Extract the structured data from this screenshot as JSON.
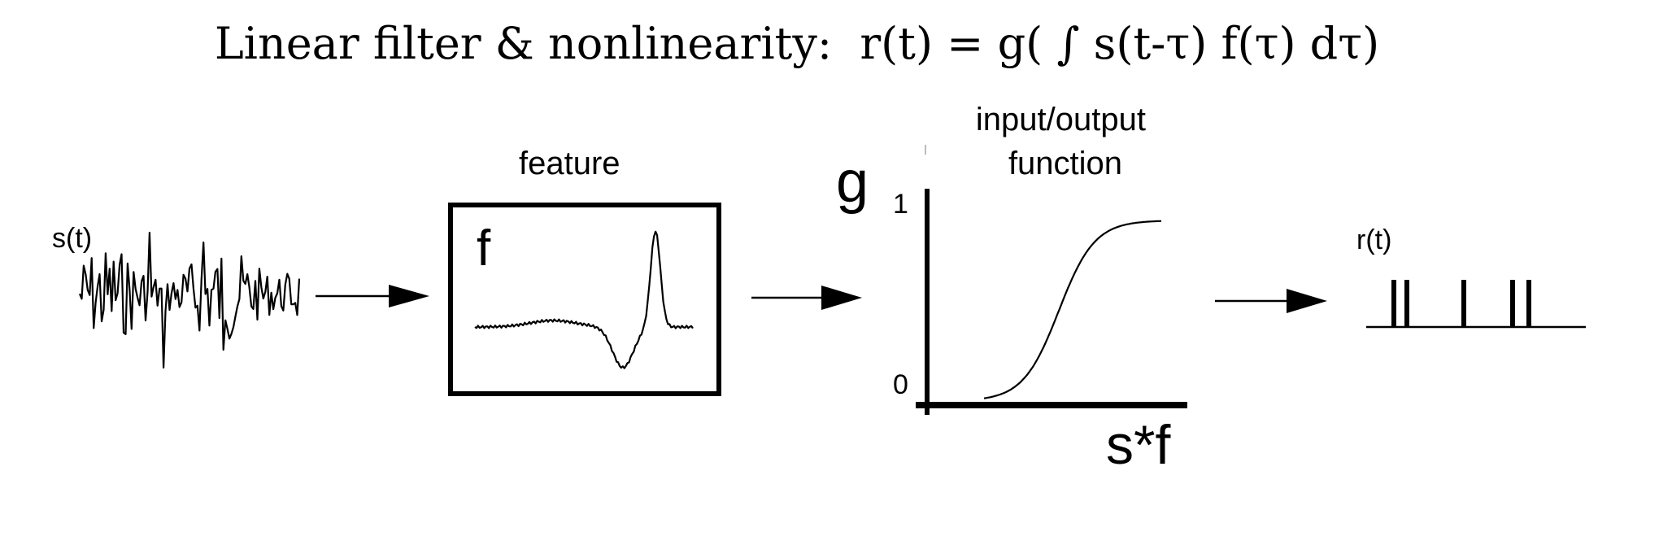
{
  "title": "Linear filter & nonlinearity:  r(t) = g( ∫ s(t-τ) f(τ) dτ)",
  "stimulus": {
    "label": "s(t)"
  },
  "filter": {
    "caption": "feature",
    "symbol": "f"
  },
  "nonlinearity": {
    "caption_line1": "input/output",
    "caption_line2": "function",
    "symbol": "g",
    "ytick_top": "1",
    "ytick_bottom": "0",
    "xlabel": "s*f"
  },
  "response": {
    "label": "r(t)",
    "spike_count": 5
  },
  "colors": {
    "ink": "#000000",
    "background": "#ffffff"
  }
}
